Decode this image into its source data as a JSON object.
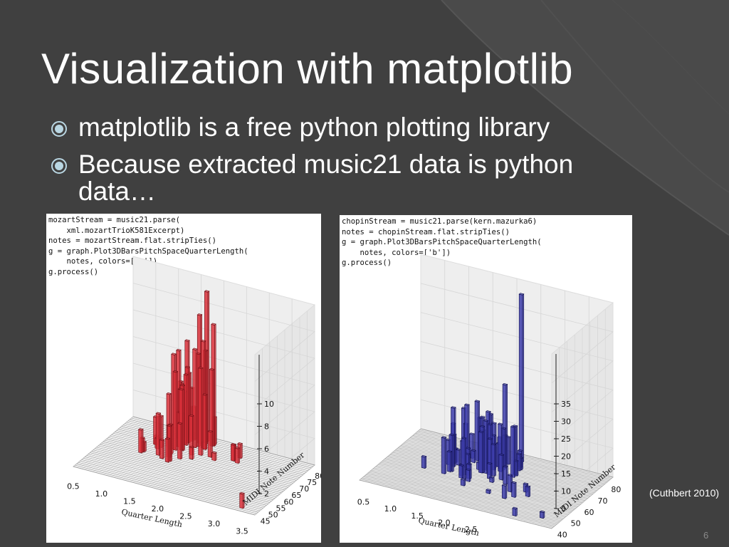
{
  "slide": {
    "title": "Visualization with matplotlib",
    "bullets": [
      {
        "text": "matplotlib is a free python plotting library"
      },
      {
        "text": "Because extracted music21 data is python data…"
      }
    ],
    "citation": "(Cuthbert 2010)",
    "page_number": "6"
  },
  "panels": [
    {
      "id": "mozart",
      "code": "mozartStream = music21.parse(\n    xml.mozartTrioK581Excerpt)\nnotes = mozartStream.flat.stripTies()\ng = graph.Plot3DBarsPitchSpaceQuarterLength(\n    notes, colors=['r'])\ng.process()",
      "bar_color": "#d9303a",
      "bar_edge": "#6e1016",
      "z_ticks": [
        "2",
        "4",
        "6",
        "8",
        "10"
      ],
      "x_ticks": [
        "0.5",
        "1.0",
        "1.5",
        "2.0",
        "2.5",
        "3.0",
        "3.5"
      ],
      "y_ticks": [
        "45",
        "50",
        "55",
        "60",
        "65",
        "70",
        "75",
        "80"
      ],
      "x_label": "Quarter Length",
      "y_label": "MIDI Note Number"
    },
    {
      "id": "chopin",
      "code": "chopinStream = music21.parse(kern.mazurka6)\nnotes = chopinStream.flat.stripTies()\ng = graph.Plot3DBarsPitchSpaceQuarterLength(\n    notes, colors=['b'])\ng.process()",
      "bar_color": "#3d3daa",
      "bar_edge": "#121250",
      "z_ticks": [
        "5",
        "10",
        "15",
        "20",
        "25",
        "30",
        "35"
      ],
      "x_ticks": [
        "0.5",
        "1.0",
        "1.5",
        "2.0",
        "2.5"
      ],
      "y_ticks": [
        "40",
        "50",
        "60",
        "70",
        "80"
      ],
      "x_label": "Quarter Length",
      "y_label": "MIDI Note Number"
    }
  ]
}
